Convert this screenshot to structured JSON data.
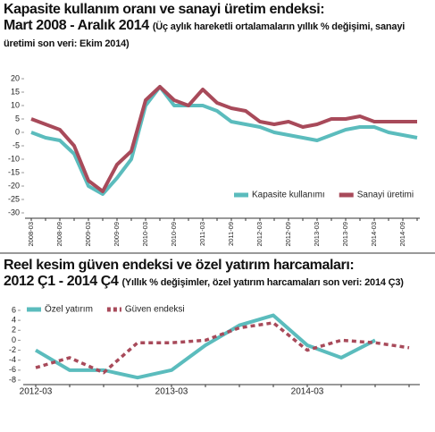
{
  "chart_data": [
    {
      "type": "line",
      "title": "Kapasite kullanım oranı ve sanayi üretim endeksi:",
      "period": "Mart 2008 - Aralık 2014",
      "subtitle": "(Üç aylık hareketli ortalamaların yıllık % değişimi, sanayi üretimi son veri: Ekim 2014)",
      "categories": [
        "2008-03",
        null,
        "2008-09",
        null,
        "2009-03",
        null,
        "2009-09",
        null,
        "2010-03",
        null,
        "2010-09",
        null,
        "2011-03",
        null,
        "2011-09",
        null,
        "2012-03",
        null,
        "2012-09",
        null,
        "2013-03",
        null,
        "2013-09",
        null,
        "2014-03",
        null,
        "2014-09",
        null
      ],
      "series": [
        {
          "name": "Kapasite kullanımı",
          "color": "#5bbcbd",
          "dash": false,
          "values": [
            0,
            -2,
            -3,
            -8,
            -20,
            -23,
            -17,
            -10,
            10,
            17,
            10,
            10,
            10,
            8,
            4,
            3,
            2,
            0,
            -1,
            -2,
            -3,
            -1,
            1,
            2,
            2,
            0,
            -1,
            -2
          ]
        },
        {
          "name": "Sanayi üretimi",
          "color": "#a84a5a",
          "dash": false,
          "values": [
            5,
            3,
            1,
            -5,
            -18,
            -22,
            -12,
            -7,
            12,
            17,
            12,
            10,
            16,
            11,
            9,
            8,
            4,
            3,
            4,
            2,
            3,
            5,
            5,
            6,
            4,
            4,
            4,
            4
          ]
        }
      ],
      "ylim": [
        -30,
        20
      ],
      "yticks": [
        20,
        15,
        10,
        5,
        0,
        -5,
        -10,
        -15,
        -20,
        -25,
        -30
      ],
      "legend": "lower right",
      "rotate_xlabels": true
    },
    {
      "type": "line",
      "title": "Reel kesim güven endeksi ve özel yatırım harcamaları:",
      "period": "2012 Ç1 - 2014 Ç4",
      "subtitle": "(Yıllık % değişimler, özel yatırım harcamaları son veri: 2014 Ç3)",
      "categories": [
        "2012-03",
        null,
        null,
        null,
        "2013-03",
        null,
        null,
        null,
        "2014-03",
        null,
        null,
        null
      ],
      "series": [
        {
          "name": "Özel yatırım",
          "color": "#5bbcbd",
          "dash": false,
          "values": [
            -2,
            -6,
            -6,
            -7.5,
            -6,
            -1,
            3,
            5,
            -1,
            -3.5,
            0,
            null
          ]
        },
        {
          "name": "Güven endeksi",
          "color": "#a84a5a",
          "dash": true,
          "values": [
            -5.5,
            -3.5,
            -6.5,
            -0.5,
            -0.5,
            0,
            2.5,
            3.5,
            -2,
            0,
            -0.5,
            -1.5
          ]
        }
      ],
      "ylim": [
        -8,
        6
      ],
      "yticks": [
        6,
        4,
        2,
        0,
        -2,
        -4,
        -6,
        -8
      ],
      "legend": "upper left",
      "rotate_xlabels": false
    }
  ]
}
